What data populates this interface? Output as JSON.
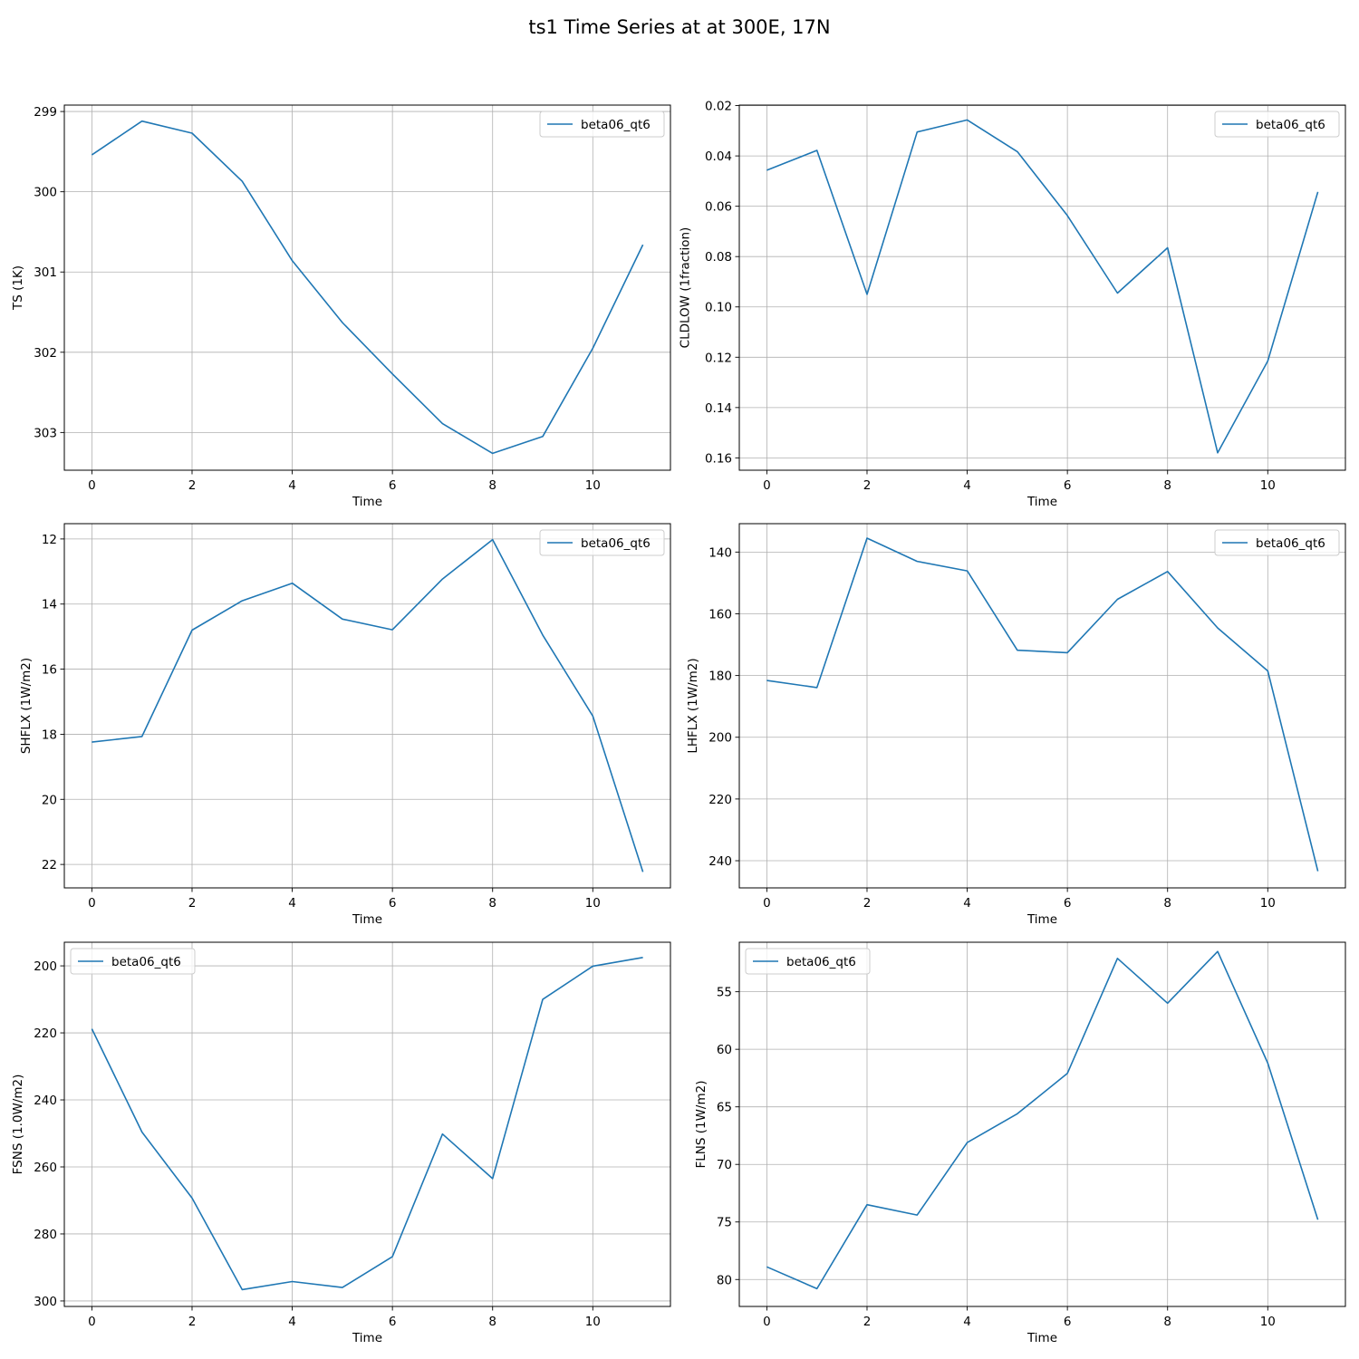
{
  "figure": {
    "title": "ts1 Time Series at at 300E, 17N"
  },
  "chart_data": [
    {
      "type": "line",
      "xlabel": "Time",
      "ylabel": "TS (1K)",
      "y_inverted": true,
      "grid": true,
      "legend": "upper right",
      "xlim": [
        -0.55,
        11.55
      ],
      "ylim": [
        303.47,
        298.92
      ],
      "xticks": [
        0,
        2,
        4,
        6,
        8,
        10
      ],
      "yticks": [
        299,
        300,
        301,
        302,
        303
      ],
      "x": [
        0,
        1,
        2,
        3,
        4,
        5,
        6,
        7,
        8,
        9,
        10,
        11
      ],
      "series": [
        {
          "name": "beta06_qt6",
          "color": "#1f77b4",
          "values": [
            299.54,
            299.12,
            299.27,
            299.87,
            300.86,
            301.63,
            302.27,
            302.89,
            303.26,
            303.05,
            301.95,
            300.66
          ]
        }
      ]
    },
    {
      "type": "line",
      "xlabel": "Time",
      "ylabel": "CLDLOW (1fraction)",
      "y_inverted": true,
      "grid": true,
      "legend": "upper right",
      "xlim": [
        -0.55,
        11.55
      ],
      "ylim": [
        0.1649,
        0.0198
      ],
      "xticks": [
        0,
        2,
        4,
        6,
        8,
        10
      ],
      "yticks": [
        0.02,
        0.04,
        0.06,
        0.08,
        0.1,
        0.12,
        0.14,
        0.16
      ],
      "x": [
        0,
        1,
        2,
        3,
        4,
        5,
        6,
        7,
        8,
        9,
        10,
        11
      ],
      "series": [
        {
          "name": "beta06_qt6",
          "color": "#1f77b4",
          "values": [
            0.0457,
            0.0378,
            0.095,
            0.0305,
            0.0257,
            0.0383,
            0.0637,
            0.0945,
            0.0765,
            0.158,
            0.1215,
            0.0543
          ]
        }
      ]
    },
    {
      "type": "line",
      "xlabel": "Time",
      "ylabel": "SHFLX (1W/m2)",
      "y_inverted": true,
      "grid": true,
      "legend": "upper right",
      "xlim": [
        -0.55,
        11.55
      ],
      "ylim": [
        22.72,
        11.53
      ],
      "xticks": [
        0,
        2,
        4,
        6,
        8,
        10
      ],
      "yticks": [
        12,
        14,
        16,
        18,
        20,
        22
      ],
      "x": [
        0,
        1,
        2,
        3,
        4,
        5,
        6,
        7,
        8,
        9,
        10,
        11
      ],
      "series": [
        {
          "name": "beta06_qt6",
          "color": "#1f77b4",
          "values": [
            18.24,
            18.07,
            14.8,
            13.9,
            13.36,
            14.46,
            14.79,
            13.23,
            12.02,
            14.95,
            17.44,
            22.23
          ]
        }
      ]
    },
    {
      "type": "line",
      "xlabel": "Time",
      "ylabel": "LHFLX (1W/m2)",
      "y_inverted": true,
      "grid": true,
      "legend": "upper right",
      "xlim": [
        -0.55,
        11.55
      ],
      "ylim": [
        248.8,
        130.8
      ],
      "xticks": [
        0,
        2,
        4,
        6,
        8,
        10
      ],
      "yticks": [
        140,
        160,
        180,
        200,
        220,
        240
      ],
      "x": [
        0,
        1,
        2,
        3,
        4,
        5,
        6,
        7,
        8,
        9,
        10,
        11
      ],
      "series": [
        {
          "name": "beta06_qt6",
          "color": "#1f77b4",
          "values": [
            181.6,
            183.9,
            135.5,
            143.0,
            146.1,
            171.8,
            172.6,
            155.3,
            146.3,
            164.6,
            178.5,
            243.4
          ]
        }
      ]
    },
    {
      "type": "line",
      "xlabel": "Time",
      "ylabel": "FSNS (1.0W/m2)",
      "y_inverted": true,
      "grid": true,
      "legend": "upper left",
      "xlim": [
        -0.55,
        11.55
      ],
      "ylim": [
        301.64,
        192.95
      ],
      "xticks": [
        0,
        2,
        4,
        6,
        8,
        10
      ],
      "yticks": [
        200,
        220,
        240,
        260,
        280,
        300
      ],
      "x": [
        0,
        1,
        2,
        3,
        4,
        5,
        6,
        7,
        8,
        9,
        10,
        11
      ],
      "series": [
        {
          "name": "beta06_qt6",
          "color": "#1f77b4",
          "values": [
            218.8,
            249.6,
            269.3,
            296.6,
            294.2,
            296.0,
            286.8,
            250.2,
            263.5,
            210.0,
            200.1,
            197.5
          ]
        }
      ]
    },
    {
      "type": "line",
      "xlabel": "Time",
      "ylabel": "FLNS (1W/m2)",
      "y_inverted": true,
      "grid": true,
      "legend": "upper left",
      "xlim": [
        -0.55,
        11.55
      ],
      "ylim": [
        82.34,
        50.7
      ],
      "xticks": [
        0,
        2,
        4,
        6,
        8,
        10
      ],
      "yticks": [
        55,
        60,
        65,
        70,
        75,
        80
      ],
      "x": [
        0,
        1,
        2,
        3,
        4,
        5,
        6,
        7,
        8,
        9,
        10,
        11
      ],
      "series": [
        {
          "name": "beta06_qt6",
          "color": "#1f77b4",
          "values": [
            78.9,
            80.8,
            73.5,
            74.4,
            68.1,
            65.6,
            62.1,
            52.1,
            56.0,
            51.5,
            61.2,
            74.8
          ]
        }
      ]
    }
  ]
}
